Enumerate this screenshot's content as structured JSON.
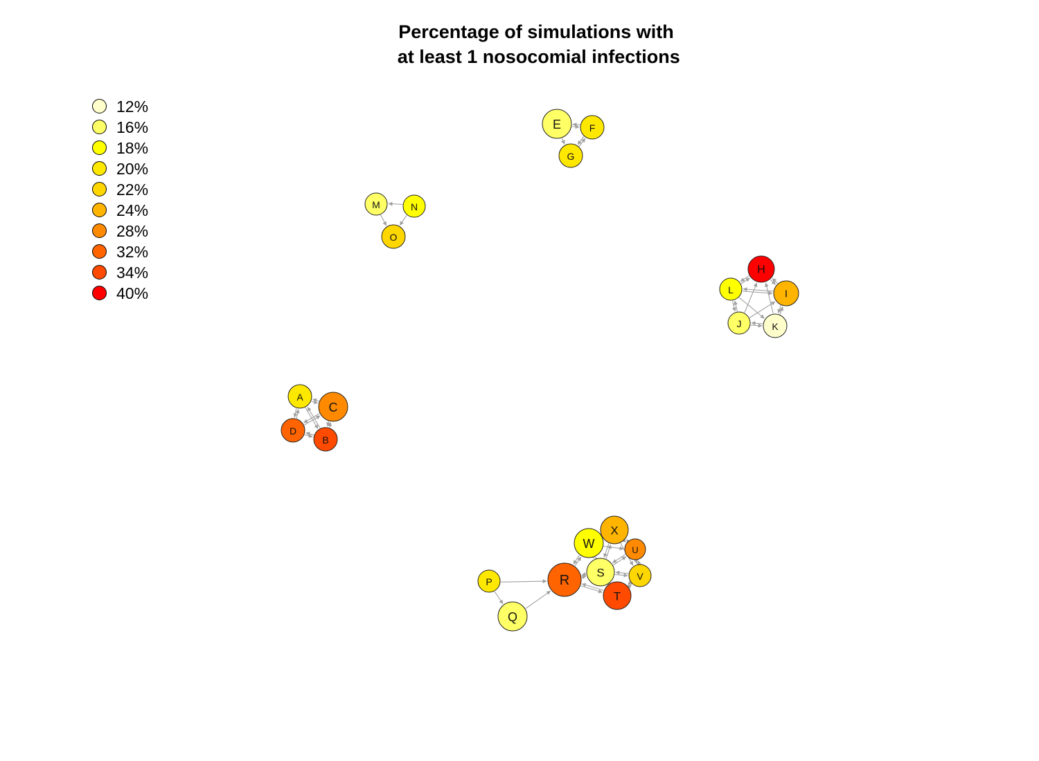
{
  "title_lines": [
    "Percentage of simulations with",
    " at least 1 nosocomial infections"
  ],
  "legend": [
    {
      "label": "12%",
      "color": "#FFFFCC"
    },
    {
      "label": "16%",
      "color": "#FFFF66"
    },
    {
      "label": "18%",
      "color": "#FFFF00"
    },
    {
      "label": "20%",
      "color": "#FFE800"
    },
    {
      "label": "22%",
      "color": "#FFD700"
    },
    {
      "label": "24%",
      "color": "#FFB400"
    },
    {
      "label": "28%",
      "color": "#FF8A00"
    },
    {
      "label": "32%",
      "color": "#FF6400"
    },
    {
      "label": "34%",
      "color": "#FF4A00"
    },
    {
      "label": "40%",
      "color": "#FF0000"
    }
  ],
  "edge_color": "#A0A0A0",
  "nodes": [
    {
      "id": "A",
      "pct": "20%"
    },
    {
      "id": "B",
      "pct": "34%"
    },
    {
      "id": "C",
      "pct": "28%"
    },
    {
      "id": "D",
      "pct": "32%"
    },
    {
      "id": "E",
      "pct": "16%"
    },
    {
      "id": "F",
      "pct": "20%"
    },
    {
      "id": "G",
      "pct": "20%"
    },
    {
      "id": "H",
      "pct": "40%"
    },
    {
      "id": "I",
      "pct": "24%"
    },
    {
      "id": "J",
      "pct": "16%"
    },
    {
      "id": "K",
      "pct": "12%"
    },
    {
      "id": "L",
      "pct": "18%"
    },
    {
      "id": "M",
      "pct": "16%"
    },
    {
      "id": "N",
      "pct": "18%"
    },
    {
      "id": "O",
      "pct": "22%"
    },
    {
      "id": "P",
      "pct": "20%"
    },
    {
      "id": "Q",
      "pct": "16%"
    },
    {
      "id": "R",
      "pct": "32%"
    },
    {
      "id": "S",
      "pct": "16%"
    },
    {
      "id": "T",
      "pct": "34%"
    },
    {
      "id": "U",
      "pct": "28%"
    },
    {
      "id": "V",
      "pct": "22%"
    },
    {
      "id": "W",
      "pct": "18%"
    },
    {
      "id": "X",
      "pct": "24%"
    }
  ],
  "edges": [
    [
      "A",
      "B"
    ],
    [
      "B",
      "A"
    ],
    [
      "A",
      "C"
    ],
    [
      "C",
      "A"
    ],
    [
      "A",
      "D"
    ],
    [
      "D",
      "A"
    ],
    [
      "B",
      "C"
    ],
    [
      "C",
      "B"
    ],
    [
      "B",
      "D"
    ],
    [
      "D",
      "B"
    ],
    [
      "C",
      "D"
    ],
    [
      "D",
      "C"
    ],
    [
      "E",
      "F"
    ],
    [
      "F",
      "E"
    ],
    [
      "E",
      "G"
    ],
    [
      "G",
      "F"
    ],
    [
      "F",
      "G"
    ],
    [
      "H",
      "I"
    ],
    [
      "I",
      "H"
    ],
    [
      "H",
      "L"
    ],
    [
      "L",
      "H"
    ],
    [
      "I",
      "K"
    ],
    [
      "K",
      "I"
    ],
    [
      "J",
      "K"
    ],
    [
      "K",
      "J"
    ],
    [
      "L",
      "J"
    ],
    [
      "J",
      "L"
    ],
    [
      "L",
      "I"
    ],
    [
      "I",
      "L"
    ],
    [
      "J",
      "H"
    ],
    [
      "K",
      "H"
    ],
    [
      "L",
      "K"
    ],
    [
      "J",
      "I"
    ],
    [
      "N",
      "M"
    ],
    [
      "M",
      "O"
    ],
    [
      "N",
      "O"
    ],
    [
      "P",
      "R"
    ],
    [
      "P",
      "Q"
    ],
    [
      "Q",
      "R"
    ],
    [
      "R",
      "W"
    ],
    [
      "W",
      "R"
    ],
    [
      "R",
      "S"
    ],
    [
      "S",
      "R"
    ],
    [
      "R",
      "T"
    ],
    [
      "T",
      "R"
    ],
    [
      "S",
      "W"
    ],
    [
      "W",
      "S"
    ],
    [
      "S",
      "X"
    ],
    [
      "X",
      "S"
    ],
    [
      "S",
      "U"
    ],
    [
      "U",
      "S"
    ],
    [
      "S",
      "V"
    ],
    [
      "V",
      "S"
    ],
    [
      "S",
      "T"
    ],
    [
      "T",
      "S"
    ],
    [
      "W",
      "X"
    ],
    [
      "X",
      "W"
    ],
    [
      "X",
      "U"
    ],
    [
      "U",
      "X"
    ],
    [
      "U",
      "V"
    ],
    [
      "V",
      "U"
    ],
    [
      "V",
      "T"
    ],
    [
      "T",
      "V"
    ],
    [
      "W",
      "U"
    ],
    [
      "X",
      "V"
    ],
    [
      "W",
      "T"
    ]
  ]
}
